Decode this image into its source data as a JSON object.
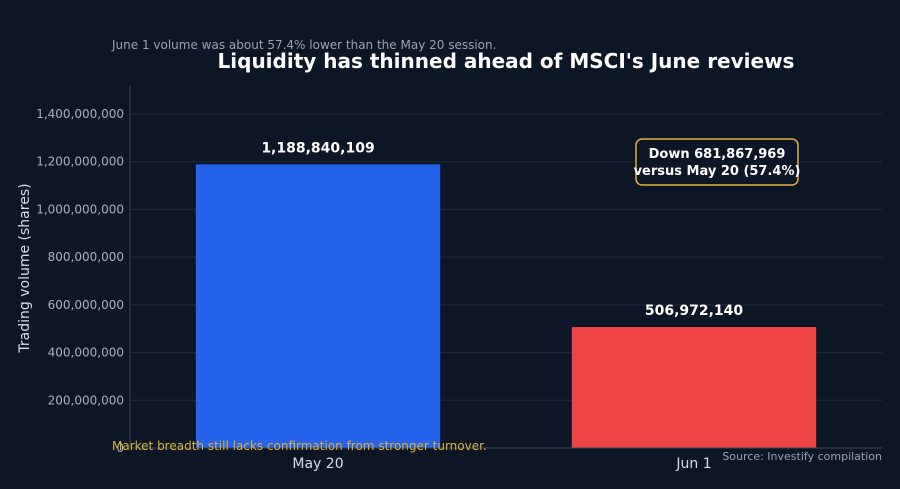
{
  "chart_data": {
    "type": "bar",
    "title": "Liquidity has thinned ahead of MSCI's June reviews",
    "subtitle": "June 1 volume was about 57.4% lower than the May 20 session.",
    "ylabel": "Trading volume (shares)",
    "xlabel": "",
    "categories": [
      "May 20",
      "Jun 1"
    ],
    "values": [
      1188840109,
      506972140
    ],
    "value_labels": [
      "1,188,840,109",
      "506,972,140"
    ],
    "bar_colors": [
      "#2563eb",
      "#ef4444"
    ],
    "ylim": [
      0,
      1400000000
    ],
    "yticks": [
      0,
      200000000,
      400000000,
      600000000,
      800000000,
      1000000000,
      1200000000,
      1400000000
    ],
    "ytick_labels": [
      "0",
      "200,000,000",
      "400,000,000",
      "600,000,000",
      "800,000,000",
      "1,000,000,000",
      "1,200,000,000",
      "1,400,000,000"
    ],
    "grid": true,
    "annotation": {
      "lines": [
        "Down 681,867,969",
        "versus May 20 (57.4%)"
      ],
      "border_color": "#e0b23a"
    },
    "note": "Market breadth still lacks confirmation from stronger turnover.",
    "note_color": "#e0b23a",
    "source": "Source: Investify compilation",
    "colors": {
      "background": "#0c1626",
      "grid": "#1e2a3a",
      "axis": "#3a4658"
    }
  }
}
